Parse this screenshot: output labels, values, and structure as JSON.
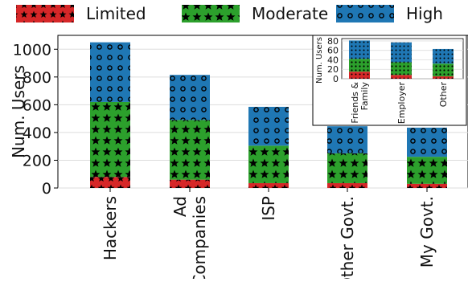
{
  "chart_data": [
    {
      "type": "bar",
      "stacked": true,
      "categories": [
        "Hackers",
        "Ad\nCompanies",
        "ISP",
        "Other Govt.",
        "My Govt."
      ],
      "series": [
        {
          "name": "Limited",
          "values": [
            80,
            60,
            35,
            35,
            30
          ],
          "color": "#d62728",
          "pattern": "stars-small"
        },
        {
          "name": "Moderate",
          "values": [
            540,
            430,
            270,
            215,
            195
          ],
          "color": "#2ca02c",
          "pattern": "stars"
        },
        {
          "name": "High",
          "values": [
            430,
            325,
            280,
            195,
            210
          ],
          "color": "#1f77b4",
          "pattern": "circles"
        }
      ],
      "ylabel": "Num. Users",
      "xlabel": "",
      "ylim": [
        0,
        1100
      ],
      "yticks": [
        "0",
        "200",
        "400",
        "600",
        "800",
        "1000"
      ],
      "grid": true,
      "legend": "top-outside"
    },
    {
      "type": "bar",
      "stacked": true,
      "inset": true,
      "categories": [
        "Friends &\nFamily",
        "Employer",
        "Other"
      ],
      "series": [
        {
          "name": "Limited",
          "values": [
            15,
            8,
            5
          ],
          "color": "#d62728"
        },
        {
          "name": "Moderate",
          "values": [
            27,
            27,
            27
          ],
          "color": "#2ca02c"
        },
        {
          "name": "High",
          "values": [
            39,
            42,
            31
          ],
          "color": "#1f77b4"
        }
      ],
      "ylabel": "Num. Users",
      "ylim": [
        0,
        85
      ],
      "yticks": [
        "0",
        "20",
        "40",
        "60",
        "80"
      ],
      "grid": true
    }
  ]
}
